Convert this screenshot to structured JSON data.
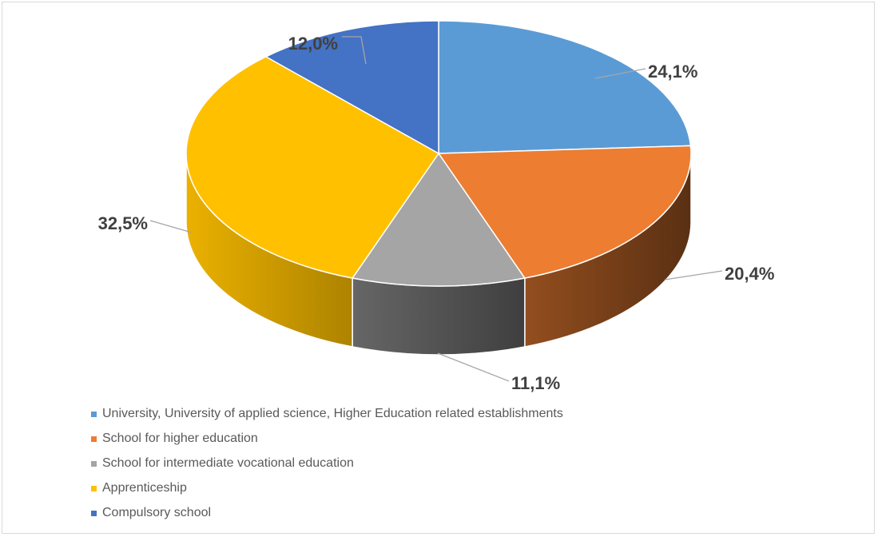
{
  "chart_data": {
    "type": "pie",
    "title": "",
    "variant": "3d",
    "label_format": "percent",
    "legend_position": "bottom-left",
    "slices": [
      {
        "label": "University, University of applied science, Higher Education related establishments",
        "value": 24.1,
        "display": "24,1%",
        "color": "#5B9BD5"
      },
      {
        "label": "School for higher education",
        "value": 20.4,
        "display": "20,4%",
        "color": "#ED7D31"
      },
      {
        "label": "School for intermediate vocational education",
        "value": 11.1,
        "display": "11,1%",
        "color": "#A5A5A5"
      },
      {
        "label": "Apprenticeship",
        "value": 32.5,
        "display": "32,5%",
        "color": "#FFC000"
      },
      {
        "label": "Compulsory school",
        "value": 12.0,
        "display": "12,0%",
        "color": "#4472C4"
      }
    ]
  }
}
